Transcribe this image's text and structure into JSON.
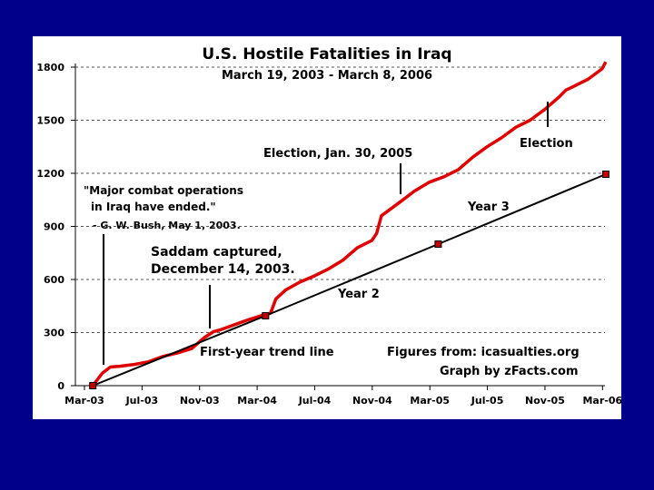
{
  "chart_data": {
    "type": "line",
    "title": "U.S. Hostile Fatalities in Iraq",
    "subtitle": "March 19, 2003 - March 8, 2006",
    "xlabel": "",
    "ylabel": "",
    "ylim": [
      0,
      1800
    ],
    "y_ticks": [
      "0",
      "300",
      "600",
      "900",
      "1200",
      "1500",
      "1800"
    ],
    "x_ticks": [
      "Mar-03",
      "Jul-03",
      "Nov-03",
      "Mar-04",
      "Jul-04",
      "Nov-04",
      "Mar-05",
      "Jul-05",
      "Nov-05",
      "Mar-06"
    ],
    "grid": "horizontal dashed",
    "series": [
      {
        "color": "#e00000",
        "points": [
          [
            "2003-03-19",
            0
          ],
          [
            "2003-04-08",
            70
          ],
          [
            "2003-04-25",
            105
          ],
          [
            "2003-05-15",
            110
          ],
          [
            "2003-06-15",
            120
          ],
          [
            "2003-07-15",
            135
          ],
          [
            "2003-08-15",
            165
          ],
          [
            "2003-09-15",
            185
          ],
          [
            "2003-10-15",
            210
          ],
          [
            "2003-11-10",
            270
          ],
          [
            "2003-11-30",
            305
          ],
          [
            "2003-12-14",
            315
          ],
          [
            "2004-01-15",
            345
          ],
          [
            "2004-02-15",
            375
          ],
          [
            "2004-03-15",
            400
          ],
          [
            "2004-03-30",
            410
          ],
          [
            "2004-04-10",
            490
          ],
          [
            "2004-04-30",
            540
          ],
          [
            "2004-05-31",
            585
          ],
          [
            "2004-06-30",
            620
          ],
          [
            "2004-07-31",
            660
          ],
          [
            "2004-08-31",
            710
          ],
          [
            "2004-09-30",
            780
          ],
          [
            "2004-10-31",
            820
          ],
          [
            "2004-11-10",
            860
          ],
          [
            "2004-11-20",
            960
          ],
          [
            "2004-12-31",
            1040
          ],
          [
            "2005-01-30",
            1100
          ],
          [
            "2005-02-28",
            1150
          ],
          [
            "2005-03-31",
            1180
          ],
          [
            "2005-04-30",
            1220
          ],
          [
            "2005-05-31",
            1290
          ],
          [
            "2005-06-30",
            1350
          ],
          [
            "2005-07-31",
            1400
          ],
          [
            "2005-08-31",
            1460
          ],
          [
            "2005-09-30",
            1500
          ],
          [
            "2005-10-31",
            1560
          ],
          [
            "2005-11-30",
            1630
          ],
          [
            "2005-12-15",
            1670
          ],
          [
            "2005-12-31",
            1690
          ],
          [
            "2006-01-31",
            1730
          ],
          [
            "2006-02-28",
            1790
          ],
          [
            "2006-03-08",
            1830
          ]
        ]
      },
      {
        "color": "#000000",
        "points": [
          [
            "2003-03-19",
            0
          ],
          [
            "2004-03-19",
            395
          ],
          [
            "2005-03-19",
            800
          ],
          [
            "2006-03-08",
            1195
          ]
        ]
      }
    ],
    "annotations": {
      "major_combat": [
        "\"Major combat operations",
        "in Iraq have ended.\"",
        "- G. W. Bush, May 1, 2003."
      ],
      "saddam": [
        "Saddam captured,",
        "December 14, 2003."
      ],
      "election_2005": "Election, Jan. 30, 2005",
      "election": "Election",
      "year3": "Year 3",
      "year2": "Year 2",
      "first_year": "First-year trend line",
      "figures_from": "Figures from: icasualties.org",
      "graph_by": "Graph by zFacts.com"
    }
  }
}
